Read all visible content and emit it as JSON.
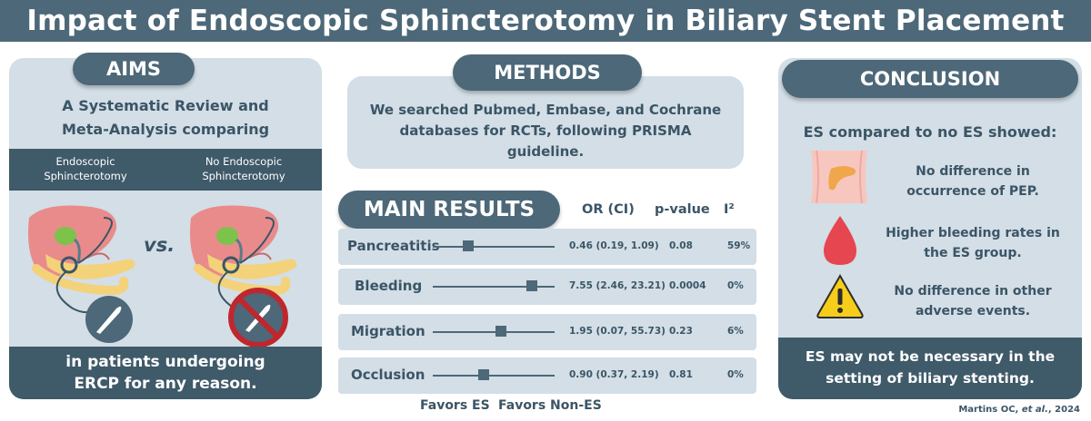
{
  "title": "Impact of Endoscopic Sphincterotomy in Biliary Stent Placement",
  "aims": {
    "heading": "AIMS",
    "subtitle_line1": "A Systematic Review and",
    "subtitle_line2": "Meta-Analysis comparing",
    "es_label_line1": "Endoscopic",
    "es_label_line2": "Sphincterotomy",
    "noes_label_line1": "No Endoscopic",
    "noes_label_line2": "Sphincterotomy",
    "vs": "vs.",
    "bottom_line1": "in patients undergoing",
    "bottom_line2": "ERCP for any reason."
  },
  "methods": {
    "heading": "METHODS",
    "line1": "We searched Pubmed, Embase, and Cochrane",
    "line2": "databases for RCTs, following PRISMA",
    "line3": "guideline."
  },
  "results": {
    "heading": "MAIN RESULTS",
    "col_or": "OR (CI)",
    "col_p": "p-value",
    "col_i2": "I²",
    "favors_es": "Favors ES",
    "favors_non_es": "Favors Non-ES",
    "rows": [
      {
        "outcome": "Pancreatitis",
        "or_ci": "0.46 (0.19, 1.09)",
        "p": "0.08",
        "i2": "59%",
        "or": 0.46
      },
      {
        "outcome": "Bleeding",
        "or_ci": "7.55 (2.46, 23.21)",
        "p": "0.0004",
        "i2": "0%",
        "or": 7.55
      },
      {
        "outcome": "Migration",
        "or_ci": "1.95 (0.07, 55.73)",
        "p": "0.23",
        "i2": "6%",
        "or": 1.95
      },
      {
        "outcome": "Occlusion",
        "or_ci": "0.90 (0.37, 2.19)",
        "p": "0.81",
        "i2": "0%",
        "or": 0.9
      }
    ]
  },
  "conclusion": {
    "heading": "CONCLUSION",
    "lead": "ES compared to no ES showed:",
    "item1_line1": "No difference in",
    "item1_line2": "occurrence of PEP.",
    "item2_line1": "Higher bleeding rates in",
    "item2_line2": "the ES group.",
    "item3_line1": "No difference in other",
    "item3_line2": "adverse events.",
    "bottom_line1": "ES may not be necessary in the",
    "bottom_line2": "setting of biliary stenting."
  },
  "citation_prefix": "Martins OC, ",
  "citation_italic": "et al.",
  "citation_suffix": ", 2024",
  "icons": {
    "liver": "liver-icon",
    "scalpel": "scalpel-icon",
    "no_scalpel": "no-scalpel-icon",
    "abdomen": "abdomen-pancreas-icon",
    "blood_drop": "blood-drop-icon",
    "warning": "warning-icon"
  }
}
